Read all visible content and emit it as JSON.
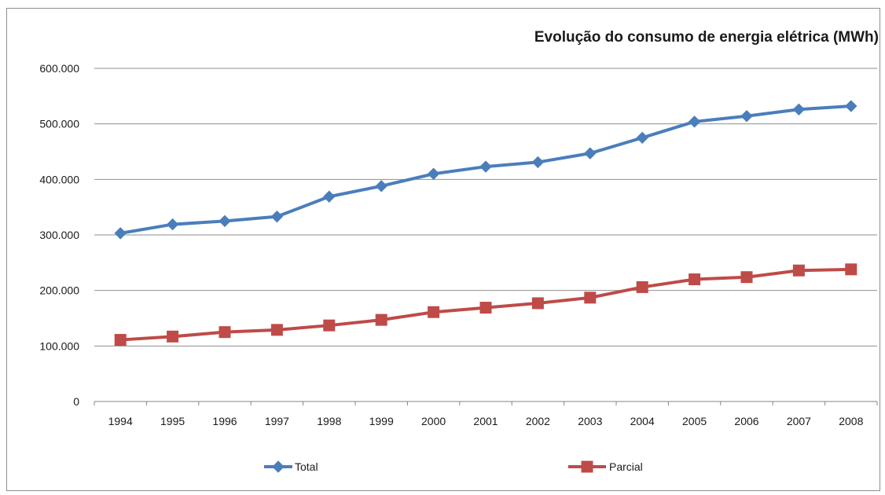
{
  "chart_data": {
    "type": "line",
    "title": "Evolução do consumo de energia elétrica (MWh)",
    "xlabel": "",
    "ylabel": "",
    "categories": [
      "1994",
      "1995",
      "1996",
      "1997",
      "1998",
      "1999",
      "2000",
      "2001",
      "2002",
      "2003",
      "2004",
      "2005",
      "2006",
      "2007",
      "2008"
    ],
    "ylim": [
      0,
      600000
    ],
    "yticks": [
      0,
      100000,
      200000,
      300000,
      400000,
      500000,
      600000
    ],
    "ytick_labels": [
      "0",
      "100.000",
      "200.000",
      "300.000",
      "400.000",
      "500.000",
      "600.000"
    ],
    "grid": true,
    "legend_position": "bottom",
    "series": [
      {
        "name": "Total",
        "color": "#4a7ebb",
        "marker": "diamond",
        "values": [
          303000,
          319000,
          325000,
          333000,
          369000,
          388000,
          410000,
          423000,
          431000,
          447000,
          475000,
          504000,
          514000,
          526000,
          532000
        ]
      },
      {
        "name": "Parcial",
        "color": "#be4b48",
        "marker": "square",
        "values": [
          111000,
          117000,
          125000,
          129000,
          137000,
          147000,
          161000,
          169000,
          177000,
          187000,
          206000,
          220000,
          224000,
          236000,
          238000
        ]
      }
    ]
  }
}
